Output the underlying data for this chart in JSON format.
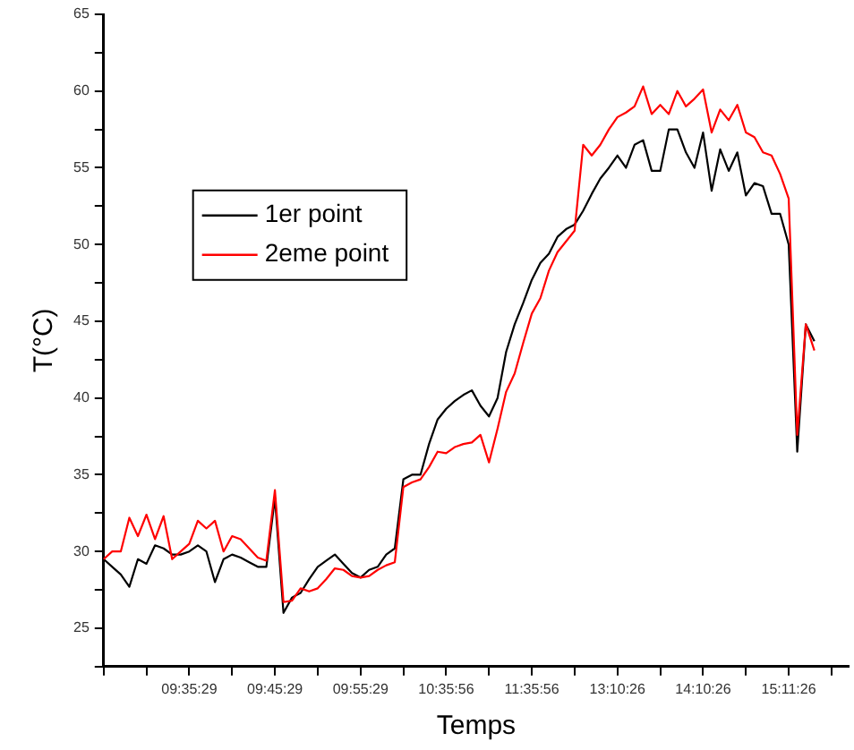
{
  "chart_data": {
    "type": "line",
    "xlabel": "Temps",
    "ylabel": "T(°C)",
    "categories": [
      null,
      null,
      null,
      null,
      null,
      null,
      null,
      null,
      null,
      null,
      "09:35:29",
      null,
      null,
      null,
      null,
      null,
      null,
      null,
      null,
      null,
      "09:45:29",
      null,
      null,
      null,
      null,
      null,
      null,
      null,
      null,
      null,
      "09:55:29",
      null,
      null,
      null,
      null,
      null,
      null,
      null,
      null,
      null,
      "10:35:56",
      null,
      null,
      null,
      null,
      null,
      null,
      null,
      null,
      null,
      "11:35:56",
      null,
      null,
      null,
      null,
      null,
      null,
      null,
      null,
      null,
      "13:10:26",
      null,
      null,
      null,
      null,
      null,
      null,
      null,
      null,
      null,
      "14:10:26",
      null,
      null,
      null,
      null,
      null,
      null,
      null,
      null,
      null,
      "15:11:26",
      null,
      null,
      null,
      null,
      null,
      null,
      null
    ],
    "ylim": [
      22.5,
      65
    ],
    "yticks": [
      {
        "value": 22.5,
        "label": null
      },
      25,
      {
        "value": 27.5,
        "label": null
      },
      30,
      {
        "value": 32.5,
        "label": null
      },
      35,
      {
        "value": 37.5,
        "label": null
      },
      40,
      {
        "value": 42.5,
        "label": null
      },
      45,
      {
        "value": 47.5,
        "label": null
      },
      50,
      {
        "value": 52.5,
        "label": null
      },
      55,
      {
        "value": 57.5,
        "label": null
      },
      60,
      {
        "value": 62.5,
        "label": null
      },
      65
    ],
    "legend": "top left",
    "grid": false,
    "marker": "none",
    "series": [
      {
        "name": "1er point",
        "color": "#000000",
        "values": [
          29.5,
          29,
          28.5,
          27.7,
          29.5,
          29.2,
          30.4,
          30.2,
          29.8,
          29.8,
          30,
          30.4,
          30,
          28,
          29.5,
          29.8,
          29.6,
          29.3,
          29,
          29,
          33.5,
          26,
          27,
          27.3,
          28.2,
          29,
          29.4,
          29.8,
          29.2,
          28.6,
          28.3,
          28.8,
          29,
          29.8,
          30.2,
          34.7,
          35,
          35,
          37,
          38.6,
          39.3,
          39.8,
          40.2,
          40.5,
          39.5,
          38.8,
          40,
          43,
          44.8,
          46.2,
          47.7,
          48.8,
          49.4,
          50.5,
          51,
          51.3,
          52.2,
          53.3,
          54.3,
          55,
          55.8,
          55,
          56.5,
          56.8,
          54.8,
          54.8,
          57.5,
          57.5,
          56,
          55,
          57.3,
          53.5,
          56.2,
          54.8,
          56,
          53.2,
          54,
          53.8,
          52,
          52,
          50,
          36.5,
          44.8,
          43.7,
          null,
          null,
          null,
          null
        ]
      },
      {
        "name": "2eme point",
        "color": "#ff0000",
        "values": [
          29.5,
          30,
          30,
          32.2,
          31,
          32.4,
          30.8,
          32.3,
          29.5,
          30,
          30.5,
          32,
          31.5,
          32,
          30,
          31,
          30.8,
          30.2,
          29.6,
          29.4,
          34,
          26.7,
          26.8,
          27.6,
          27.4,
          27.6,
          28.2,
          28.9,
          28.8,
          28.4,
          28.3,
          28.4,
          28.8,
          29.1,
          29.3,
          34.2,
          34.5,
          34.7,
          35.5,
          36.5,
          36.4,
          36.8,
          37,
          37.1,
          37.6,
          35.8,
          38,
          40.4,
          41.6,
          43.6,
          45.5,
          46.5,
          48.3,
          49.5,
          50.2,
          50.9,
          56.5,
          55.8,
          56.5,
          57.5,
          58.3,
          58.6,
          59,
          60.3,
          58.5,
          59.1,
          58.5,
          60,
          59,
          59.5,
          60.1,
          57.3,
          58.8,
          58.1,
          59.1,
          57.3,
          57,
          56,
          55.8,
          54.6,
          53,
          37.6,
          44.8,
          43.1,
          null,
          null,
          null,
          null
        ]
      }
    ]
  }
}
